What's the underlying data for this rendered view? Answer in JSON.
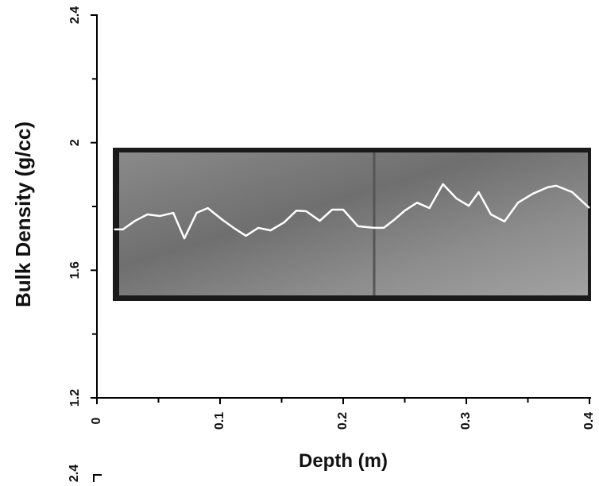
{
  "chart_data": {
    "type": "line",
    "xlabel": "Depth (m)",
    "ylabel": "Bulk Density (g/cc)",
    "xlim": [
      0,
      0.4
    ],
    "ylim": [
      1.2,
      2.4
    ],
    "xticks": [
      0,
      0.1,
      0.2,
      0.3,
      0.4
    ],
    "yticks": [
      1.2,
      {
        "value": 1.6,
        "label": "1.6"
      },
      2,
      2.4
    ],
    "color": "#ffffff",
    "x": [
      0.014,
      0.021,
      0.031,
      0.041,
      0.051,
      0.062,
      0.071,
      0.081,
      0.09,
      0.102,
      0.111,
      0.121,
      0.131,
      0.141,
      0.152,
      0.162,
      0.17,
      0.181,
      0.191,
      0.2,
      0.212,
      0.225,
      0.233,
      0.242,
      0.25,
      0.26,
      0.27,
      0.281,
      0.292,
      0.302,
      0.31,
      0.32,
      0.331,
      0.342,
      0.354,
      0.366,
      0.373,
      0.386,
      0.4
    ],
    "values": [
      1.728,
      1.728,
      1.755,
      1.775,
      1.77,
      1.78,
      1.7,
      1.78,
      1.795,
      1.758,
      1.733,
      1.708,
      1.733,
      1.725,
      1.75,
      1.787,
      1.785,
      1.755,
      1.79,
      1.79,
      1.738,
      1.733,
      1.733,
      1.76,
      1.787,
      1.812,
      1.795,
      1.87,
      1.825,
      1.802,
      1.845,
      1.775,
      1.753,
      1.812,
      1.84,
      1.86,
      1.865,
      1.845,
      1.795
    ],
    "next_panel_label": "2.4"
  }
}
